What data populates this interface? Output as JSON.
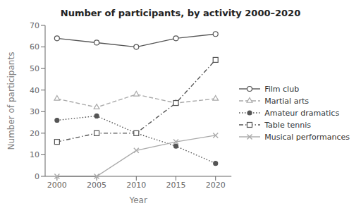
{
  "chart_data": {
    "type": "line",
    "title": "Number of participants, by activity 2000–2020",
    "xlabel": "Year",
    "ylabel": "Number of participants",
    "x": [
      2000,
      2005,
      2010,
      2015,
      2020
    ],
    "xlim": [
      1998.5,
      2022
    ],
    "xticks": [
      2000,
      2005,
      2010,
      2015,
      2020
    ],
    "ylim": [
      0,
      70
    ],
    "yticks": [
      0,
      10,
      20,
      30,
      40,
      50,
      60,
      70
    ],
    "grid": false,
    "legend": "right",
    "series": [
      {
        "name": "Film club",
        "color": "#555555",
        "line_style": "solid",
        "marker": "circle",
        "values": [
          64,
          62,
          60,
          64,
          66
        ]
      },
      {
        "name": "Martial arts",
        "color": "#aaaaaa",
        "line_style": "dashed",
        "marker": "triangle",
        "values": [
          36,
          32,
          38,
          34,
          36
        ]
      },
      {
        "name": "Amateur dramatics",
        "color": "#555555",
        "line_style": "dotted",
        "marker": "dot",
        "values": [
          26,
          28,
          20,
          14,
          6
        ]
      },
      {
        "name": "Table tennis",
        "color": "#555555",
        "line_style": "dashdot",
        "marker": "square",
        "values": [
          16,
          20,
          20,
          34,
          54
        ]
      },
      {
        "name": "Musical performances",
        "color": "#aaaaaa",
        "line_style": "solid",
        "marker": "x",
        "values": [
          0,
          0,
          12,
          16,
          19
        ]
      }
    ]
  }
}
